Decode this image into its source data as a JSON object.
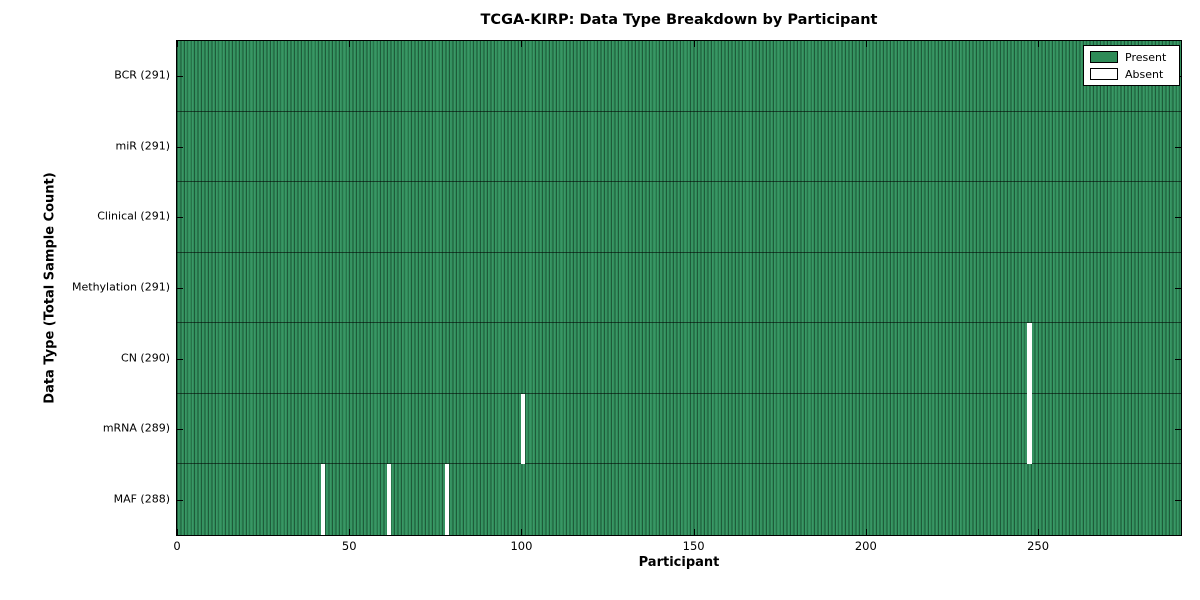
{
  "chart_data": {
    "type": "heatmap",
    "title": "TCGA-KIRP: Data Type Breakdown by Participant",
    "xlabel": "Participant",
    "ylabel": "Data Type (Total Sample Count)",
    "n_participants": 291,
    "xlim": [
      0,
      291.5
    ],
    "x_ticks": [
      0,
      50,
      100,
      150,
      200,
      250
    ],
    "grid": false,
    "legend_position": "upper right",
    "legend": {
      "entries": [
        {
          "label": "Present",
          "color": "#2e8b57"
        },
        {
          "label": "Absent",
          "color": "#ffffff"
        }
      ]
    },
    "colors": {
      "present": "#2e8b57",
      "absent": "#ffffff",
      "bar_edge": "#000000"
    },
    "rows": [
      {
        "label": "BCR (291)",
        "data_type": "BCR",
        "present_count": 291,
        "absent_participants": []
      },
      {
        "label": "miR (291)",
        "data_type": "miR",
        "present_count": 291,
        "absent_participants": []
      },
      {
        "label": "Clinical (291)",
        "data_type": "Clinical",
        "present_count": 291,
        "absent_participants": []
      },
      {
        "label": "Methylation (291)",
        "data_type": "Methylation",
        "present_count": 291,
        "absent_participants": []
      },
      {
        "label": "CN (290)",
        "data_type": "CN",
        "present_count": 290,
        "absent_participants": [
          247
        ]
      },
      {
        "label": "mRNA (289)",
        "data_type": "mRNA",
        "present_count": 289,
        "absent_participants": [
          100,
          247
        ]
      },
      {
        "label": "MAF (288)",
        "data_type": "MAF",
        "present_count": 288,
        "absent_participants": [
          42,
          61,
          78
        ]
      }
    ]
  }
}
